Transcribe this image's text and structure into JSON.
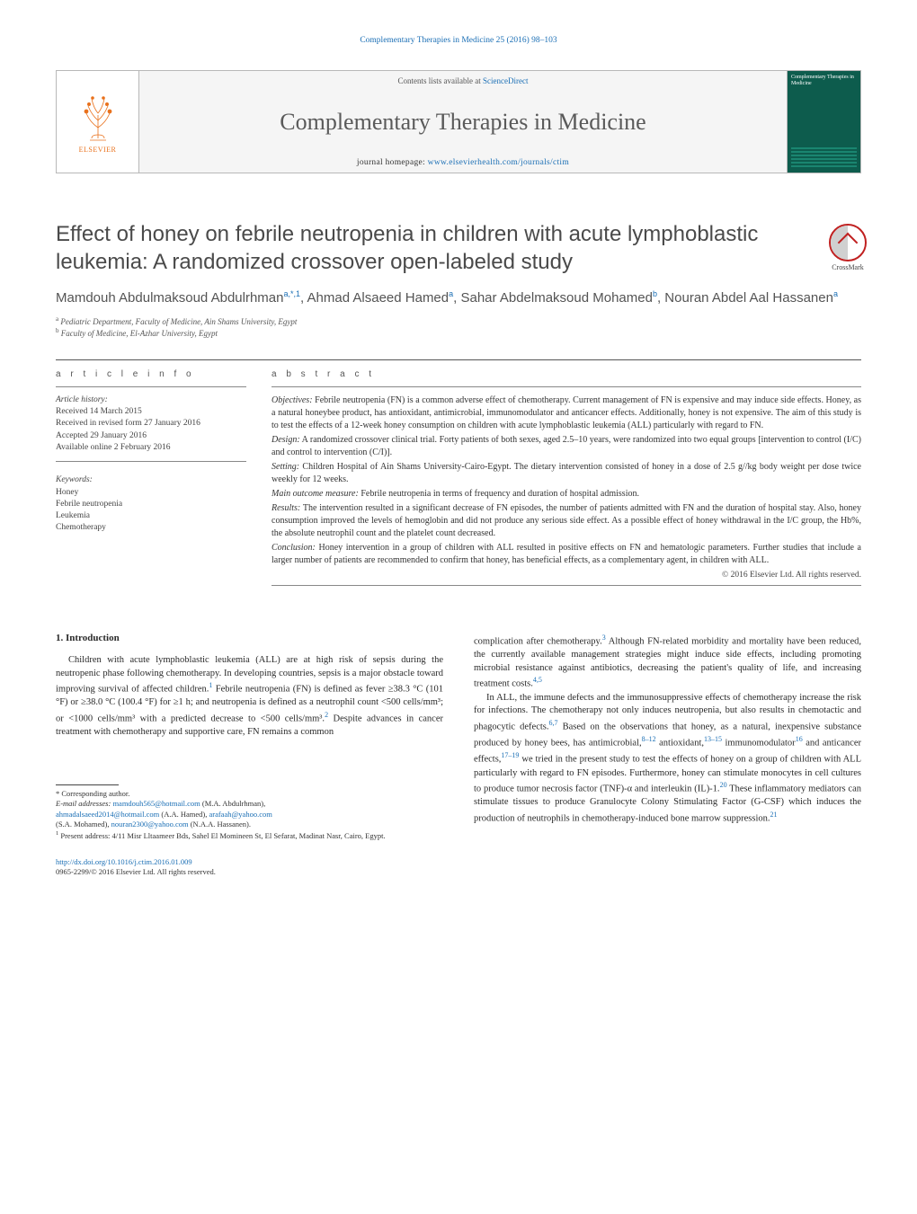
{
  "header": {
    "top_link": "Complementary Therapies in Medicine 25 (2016) 98–103",
    "contents_prefix": "Contents lists available at ",
    "contents_link": "ScienceDirect",
    "journal_name": "Complementary Therapies in Medicine",
    "homepage_label": "journal homepage: ",
    "homepage_url": "www.elsevierhealth.com/journals/ctim",
    "elsevier": "ELSEVIER",
    "cover_title": "Complementary Therapies in Medicine"
  },
  "crossmark": {
    "label": "CrossMark"
  },
  "article": {
    "title": "Effect of honey on febrile neutropenia in children with acute lymphoblastic leukemia: A randomized crossover open-labeled study",
    "authors_html": "Mamdouh Abdulmaksoud Abdulrhman<sup>a,*,1</sup>, Ahmad Alsaeed Hamed<sup>a</sup>, Sahar Abdelmaksoud Mohamed<sup>b</sup>, Nouran Abdel Aal Hassanen<sup>a</sup>",
    "affiliations": [
      {
        "sup": "a",
        "text": "Pediatric Department, Faculty of Medicine, Ain Shams University, Egypt"
      },
      {
        "sup": "b",
        "text": "Faculty of Medicine, El-Azhar University, Egypt"
      }
    ]
  },
  "article_info": {
    "heading": "a r t i c l e   i n f o",
    "history_label": "Article history:",
    "history": [
      "Received 14 March 2015",
      "Received in revised form 27 January 2016",
      "Accepted 29 January 2016",
      "Available online 2 February 2016"
    ],
    "keywords_label": "Keywords:",
    "keywords": [
      "Honey",
      "Febrile neutropenia",
      "Leukemia",
      "Chemotherapy"
    ]
  },
  "abstract": {
    "heading": "a b s t r a c t",
    "paragraphs": [
      {
        "label": "Objectives:",
        "text": " Febrile neutropenia (FN) is a common adverse effect of chemotherapy. Current management of FN is expensive and may induce side effects. Honey, as a natural honeybee product, has antioxidant, antimicrobial, immunomodulator and anticancer effects. Additionally, honey is not expensive. The aim of this study is to test the effects of a 12-week honey consumption on children with acute lymphoblastic leukemia (ALL) particularly with regard to FN."
      },
      {
        "label": "Design:",
        "text": " A randomized crossover clinical trial. Forty patients of both sexes, aged 2.5–10 years, were randomized into two equal groups [intervention to control (I/C) and control to intervention (C/I)]."
      },
      {
        "label": "Setting:",
        "text": " Children Hospital of Ain Shams University-Cairo-Egypt. The dietary intervention consisted of honey in a dose of 2.5 g//kg body weight per dose twice weekly for 12 weeks."
      },
      {
        "label": "Main outcome measure:",
        "text": " Febrile neutropenia in terms of frequency and duration of hospital admission."
      },
      {
        "label": "Results:",
        "text": " The intervention resulted in a significant decrease of FN episodes, the number of patients admitted with FN and the duration of hospital stay. Also, honey consumption improved the levels of hemoglobin and did not produce any serious side effect. As a possible effect of honey withdrawal in the I/C group, the Hb%, the absolute neutrophil count and the platelet count decreased."
      },
      {
        "label": "Conclusion:",
        "text": " Honey intervention in a group of children with ALL resulted in positive effects on FN and hematologic parameters. Further studies that include a larger number of patients are recommended to confirm that honey, has beneficial effects, as a complementary agent, in children with ALL."
      }
    ],
    "copyright": "© 2016 Elsevier Ltd. All rights reserved."
  },
  "body": {
    "section_1_heading": "1. Introduction",
    "col1_p1": "Children with acute lymphoblastic leukemia (ALL) are at high risk of sepsis during the neutropenic phase following chemotherapy. In developing countries, sepsis is a major obstacle toward improving survival of affected children.",
    "col1_p1_ref": "1",
    "col1_p1b": " Febrile neutropenia (FN) is defined as fever ≥38.3 °C (101 °F) or ≥38.0 °C (100.4 °F) for ≥1 h; and neutropenia is defined as a neutrophil count <500 cells/mm³; or <1000 cells/mm³ with a predicted decrease to <500 cells/mm³.",
    "col1_p1b_ref": "2",
    "col1_p1c": " Despite advances in cancer treatment with chemotherapy and supportive care, FN remains a common",
    "col2_p1": "complication after chemotherapy.",
    "col2_p1_ref": "3",
    "col2_p1b": " Although FN-related morbidity and mortality have been reduced, the currently available management strategies might induce side effects, including promoting microbial resistance against antibiotics, decreasing the patient's quality of life, and increasing treatment costs.",
    "col2_p1b_ref": "4,5",
    "col2_p2": "In ALL, the immune defects and the immunosuppressive effects of chemotherapy increase the risk for infections. The chemotherapy not only induces neutropenia, but also results in chemotactic and phagocytic defects.",
    "col2_p2_ref": "6,7",
    "col2_p2b": " Based on the observations that honey, as a natural, inexpensive substance produced by honey bees, has antimicrobial,",
    "col2_p2b_ref": "8–12",
    "col2_p2c": " antioxidant,",
    "col2_p2c_ref": "13–15",
    "col2_p2d": " immunomodulator",
    "col2_p2d_ref": "16",
    "col2_p2e": " and anticancer effects,",
    "col2_p2e_ref": "17–19",
    "col2_p2f": " we tried in the present study to test the effects of honey on a group of children with ALL particularly with regard to FN episodes. Furthermore, honey can stimulate monocytes in cell cultures to produce tumor necrosis factor (TNF)-α and interleukin (IL)-1.",
    "col2_p2f_ref": "20",
    "col2_p2g": " These inflammatory mediators can stimulate tissues to produce Granulocyte Colony Stimulating Factor (G-CSF) which induces the production of neutrophils in chemotherapy-induced bone marrow suppression.",
    "col2_p2g_ref": "21"
  },
  "footnotes": {
    "corresponding": "* Corresponding author.",
    "email_label": "E-mail addresses:",
    "emails": [
      {
        "addr": "mamdouh565@hotmail.com",
        "who": "(M.A. Abdulrhman)"
      },
      {
        "addr": "ahmadalsaeed2014@hotmail.com",
        "who": "(A.A. Hamed)"
      },
      {
        "addr": "arafaah@yahoo.com",
        "who": ""
      },
      {
        "addr": "",
        "who": "(S.A. Mohamed)"
      },
      {
        "addr": "nouran2300@yahoo.com",
        "who": "(N.A.A. Hassanen)"
      }
    ],
    "present_address": "Present address: 4/11 Misr Lltaameer Bds, Sahel El Momineen St, El Sefarat, Madinat Nasr, Cairo, Egypt.",
    "present_sup": "1"
  },
  "bottom": {
    "doi": "http://dx.doi.org/10.1016/j.ctim.2016.01.009",
    "issn_line": "0965-2299/© 2016 Elsevier Ltd. All rights reserved."
  },
  "colors": {
    "link": "#1b6fb5",
    "orange": "#e9711c",
    "cover": "#0d5c4d",
    "text": "#2a2a2a",
    "gray_text": "#555555",
    "border": "#b8b8b8",
    "header_bg": "#f5f5f5"
  }
}
